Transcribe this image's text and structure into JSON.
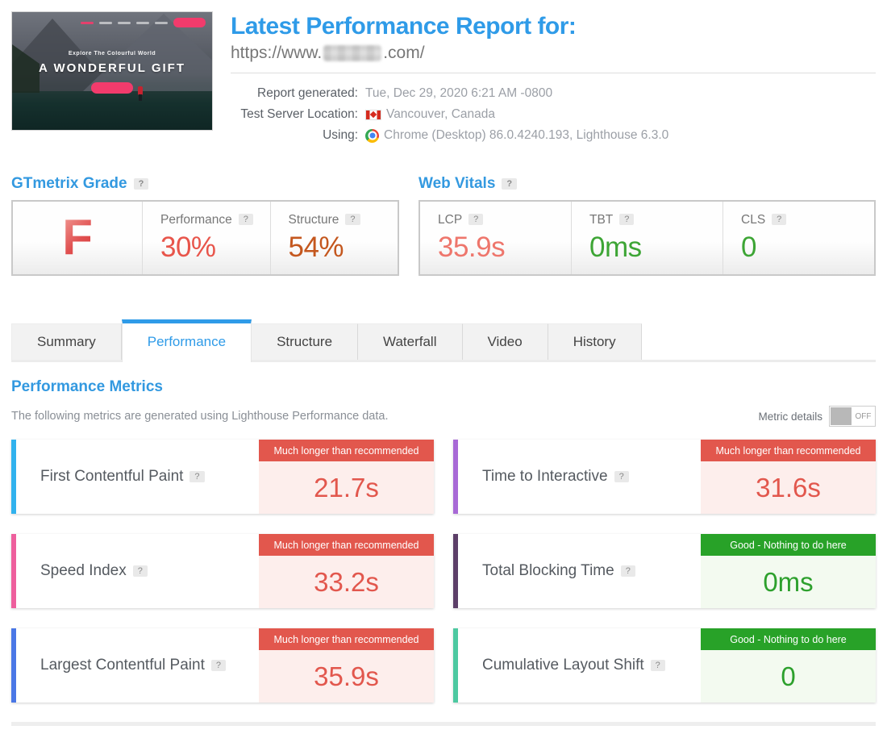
{
  "help_icon": "?",
  "header": {
    "title": "Latest Performance Report for:",
    "url_prefix": "https://www.",
    "url_suffix": ".com/",
    "meta": [
      {
        "label": "Report generated:",
        "value": "Tue, Dec 29, 2020 6:21 AM -0800"
      },
      {
        "label": "Test Server Location:",
        "value": "Vancouver, Canada",
        "icon": "canada-flag"
      },
      {
        "label": "Using:",
        "value": "Chrome (Desktop) 86.0.4240.193, Lighthouse 6.3.0",
        "icon": "chrome"
      }
    ],
    "thumbnail": {
      "tagline": "Explore The Colourful World",
      "heading": "A WONDERFUL GIFT"
    }
  },
  "grade": {
    "section_title": "GTmetrix Grade",
    "letter": "F",
    "letter_color": "#d93434",
    "cells": [
      {
        "label": "Performance",
        "value": "30%",
        "value_color": "#e8554b"
      },
      {
        "label": "Structure",
        "value": "54%",
        "value_color": "#c4571e"
      }
    ]
  },
  "vitals": {
    "section_title": "Web Vitals",
    "cells": [
      {
        "label": "LCP",
        "value": "35.9s",
        "value_color": "#ee766c"
      },
      {
        "label": "TBT",
        "value": "0ms",
        "value_color": "#3da535"
      },
      {
        "label": "CLS",
        "value": "0",
        "value_color": "#3da535"
      }
    ]
  },
  "tabs": [
    {
      "label": "Summary"
    },
    {
      "label": "Performance"
    },
    {
      "label": "Structure"
    },
    {
      "label": "Waterfall"
    },
    {
      "label": "Video"
    },
    {
      "label": "History"
    }
  ],
  "metrics_section": {
    "title": "Performance Metrics",
    "subtitle": "The following metrics are generated using Lighthouse Performance data.",
    "toggle_label": "Metric details",
    "toggle_state": "OFF"
  },
  "metrics": [
    {
      "name": "First Contentful Paint",
      "value": "21.7s",
      "status": "Much longer than recommended",
      "status_type": "bad",
      "accent": "#31b2ee"
    },
    {
      "name": "Time to Interactive",
      "value": "31.6s",
      "status": "Much longer than recommended",
      "status_type": "bad",
      "accent": "#a869d6"
    },
    {
      "name": "Speed Index",
      "value": "33.2s",
      "status": "Much longer than recommended",
      "status_type": "bad",
      "accent": "#ee5f9d"
    },
    {
      "name": "Total Blocking Time",
      "value": "0ms",
      "status": "Good - Nothing to do here",
      "status_type": "good",
      "accent": "#5c3f68"
    },
    {
      "name": "Largest Contentful Paint",
      "value": "35.9s",
      "status": "Much longer than recommended",
      "status_type": "bad",
      "accent": "#4a77e6"
    },
    {
      "name": "Cumulative Layout Shift",
      "value": "0",
      "status": "Good - Nothing to do here",
      "status_type": "good",
      "accent": "#4dc9a1"
    }
  ],
  "colors": {
    "accent_blue": "#2f9be8",
    "bad_red": "#e2574d",
    "good_green": "#28a228"
  }
}
